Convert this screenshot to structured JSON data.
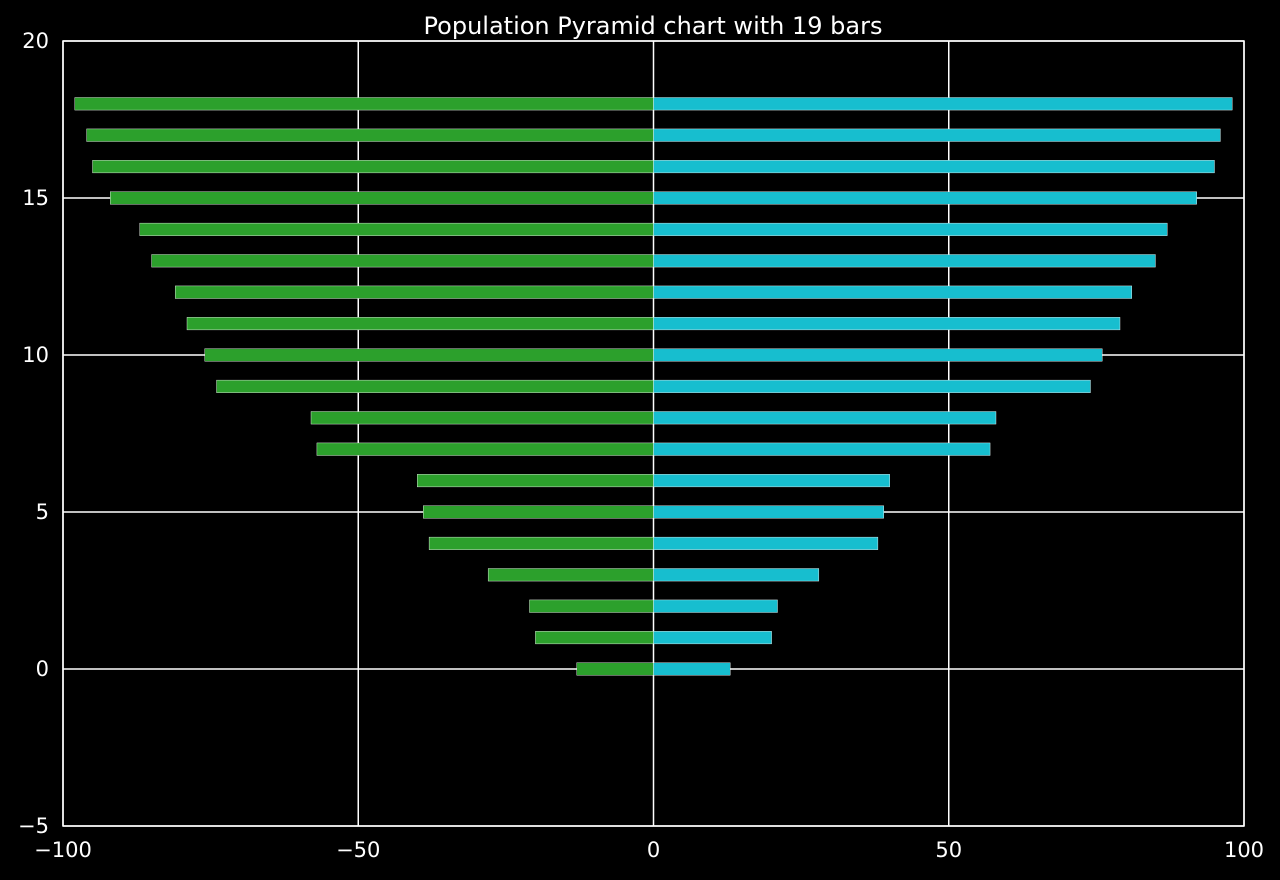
{
  "chart_data": {
    "type": "bar",
    "orientation": "horizontal",
    "title": "Population Pyramid chart with 19 bars",
    "xlabel": "",
    "ylabel": "",
    "xlim": [
      -100,
      100
    ],
    "ylim": [
      -5,
      20
    ],
    "x_ticks": [
      -100,
      -50,
      0,
      50,
      100
    ],
    "y_ticks": [
      -5,
      0,
      5,
      10,
      15,
      20
    ],
    "x_tick_labels": [
      "−100",
      "−50",
      "0",
      "50",
      "100"
    ],
    "y_tick_labels": [
      "−5",
      "0",
      "5",
      "10",
      "15",
      "20"
    ],
    "grid": true,
    "legend": "none",
    "categories": [
      0,
      1,
      2,
      3,
      4,
      5,
      6,
      7,
      8,
      9,
      10,
      11,
      12,
      13,
      14,
      15,
      16,
      17,
      18
    ],
    "series": [
      {
        "color": "#2ca02c",
        "values": [
          -13,
          -20,
          -21,
          -28,
          -38,
          -39,
          -40,
          -57,
          -58,
          -74,
          -76,
          -79,
          -81,
          -85,
          -87,
          -92,
          -95,
          -96,
          -98
        ]
      },
      {
        "color": "#17becf",
        "values": [
          13,
          20,
          21,
          28,
          38,
          39,
          40,
          57,
          58,
          74,
          76,
          79,
          81,
          85,
          87,
          92,
          95,
          96,
          98
        ]
      }
    ],
    "bar_height": 0.4
  },
  "colors": {
    "background": "#000000",
    "axes": "#ffffff",
    "grid": "#ffffff",
    "text": "#ffffff"
  }
}
